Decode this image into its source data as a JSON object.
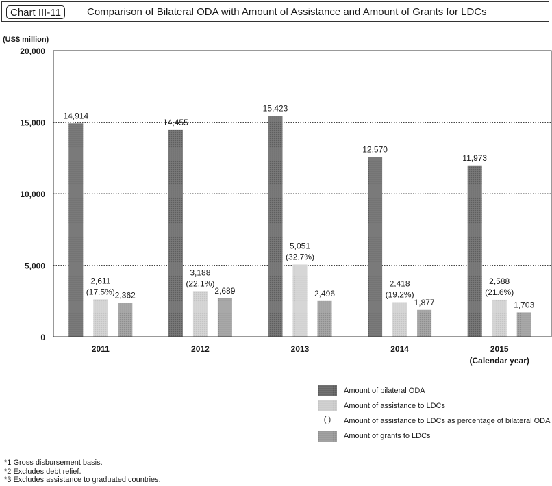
{
  "header": {
    "tag": "Chart III-11",
    "title": "Comparison of Bilateral ODA with Amount of Assistance and Amount of Grants for LDCs"
  },
  "unit": "(US$ million)",
  "chart_data": {
    "type": "bar",
    "title": "Comparison of Bilateral ODA with Amount of Assistance and Amount of Grants for LDCs",
    "ylabel": "(US$ million)",
    "xlabel": "(Calendar year)",
    "ylim": [
      0,
      20000
    ],
    "yticks": [
      0,
      5000,
      10000,
      15000,
      20000
    ],
    "ytick_labels": [
      "0",
      "5,000",
      "10,000",
      "15,000",
      "20,000"
    ],
    "categories": [
      "2011",
      "2012",
      "2013",
      "2014",
      "2015"
    ],
    "series": [
      {
        "name": "Amount of bilateral ODA",
        "color": "#777777",
        "values": [
          14914,
          14455,
          15423,
          12570,
          11973
        ],
        "labels": [
          "14,914",
          "14,455",
          "15,423",
          "12,570",
          "11,973"
        ]
      },
      {
        "name": "Amount of assistance to LDCs",
        "color": "#d4d4d4",
        "values": [
          2611,
          3188,
          5051,
          2418,
          2588
        ],
        "labels": [
          "2,611",
          "3,188",
          "5,051",
          "2,418",
          "2,588"
        ],
        "percent_labels": [
          "(17.5%)",
          "(22.1%)",
          "(32.7%)",
          "(19.2%)",
          "(21.6%)"
        ]
      },
      {
        "name": "Amount of grants to LDCs",
        "color": "#a6a6a6",
        "values": [
          2362,
          2689,
          2496,
          1877,
          1703
        ],
        "labels": [
          "2,362",
          "2,689",
          "2,496",
          "1,877",
          "1,703"
        ]
      }
    ],
    "grid": true,
    "legend_position": "bottom-right"
  },
  "legend": {
    "items": [
      {
        "swatch": "dark",
        "label": "Amount of bilateral ODA"
      },
      {
        "swatch": "light",
        "label": "Amount of assistance to LDCs"
      },
      {
        "swatch": "paren",
        "symbol": "(      )",
        "label": "Amount of assistance to LDCs as percentage of bilateral ODA"
      },
      {
        "swatch": "mid",
        "label": "Amount of grants to LDCs"
      }
    ]
  },
  "notes": [
    "*1  Gross disbursement basis.",
    "*2  Excludes debt relief.",
    "*3  Excludes assistance to graduated countries."
  ]
}
